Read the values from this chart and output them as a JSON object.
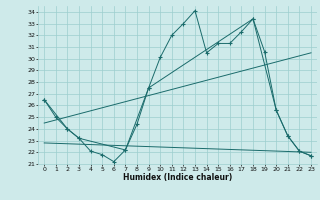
{
  "xlabel": "Humidex (Indice chaleur)",
  "background_color": "#ceeaea",
  "grid_color": "#9dcece",
  "line_color": "#1a6b6b",
  "xlim": [
    -0.5,
    23.5
  ],
  "ylim": [
    21,
    34.5
  ],
  "xticks": [
    0,
    1,
    2,
    3,
    4,
    5,
    6,
    7,
    8,
    9,
    10,
    11,
    12,
    13,
    14,
    15,
    16,
    17,
    18,
    19,
    20,
    21,
    22,
    23
  ],
  "yticks": [
    21,
    22,
    23,
    24,
    25,
    26,
    27,
    28,
    29,
    30,
    31,
    32,
    33,
    34
  ],
  "series1_x": [
    0,
    1,
    2,
    3,
    4,
    5,
    6,
    7,
    8,
    9,
    10,
    11,
    12,
    13,
    14,
    15,
    16,
    17,
    18,
    19,
    20,
    21,
    22,
    23
  ],
  "series1_y": [
    26.5,
    25.0,
    24.0,
    23.2,
    22.1,
    21.8,
    21.2,
    22.2,
    24.4,
    27.5,
    30.1,
    32.0,
    33.0,
    34.1,
    30.5,
    31.3,
    31.3,
    32.3,
    33.4,
    30.6,
    25.6,
    23.4,
    22.1,
    21.7
  ],
  "series2_x": [
    0,
    2,
    3,
    7,
    9,
    18,
    20,
    21,
    22,
    23
  ],
  "series2_y": [
    26.5,
    24.0,
    23.2,
    22.2,
    27.5,
    33.4,
    25.6,
    23.4,
    22.1,
    21.7
  ],
  "series3_x": [
    0,
    23
  ],
  "series3_y": [
    24.5,
    30.5
  ],
  "series4_x": [
    0,
    23
  ],
  "series4_y": [
    22.8,
    22.0
  ]
}
